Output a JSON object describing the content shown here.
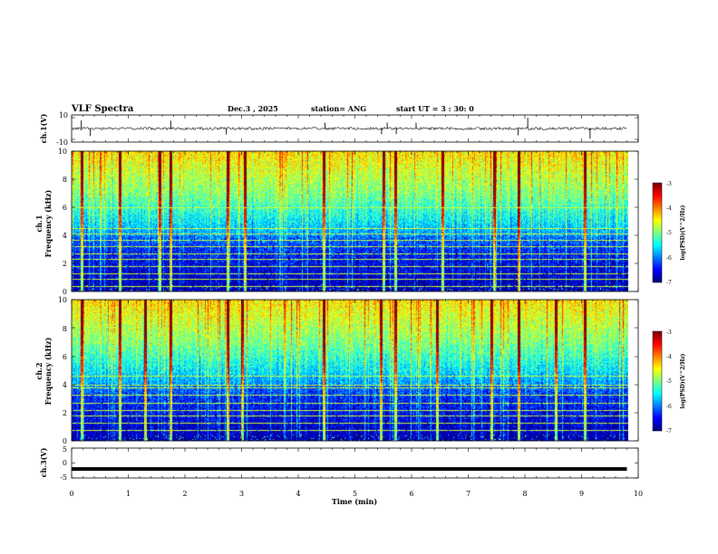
{
  "header": {
    "title": "VLF Spectra",
    "date": "Dec.3 , 2025",
    "station": "station= ANG",
    "start": "start UT = 3 : 30: 0"
  },
  "chart_data": [
    {
      "id": "ch1-waveform",
      "type": "line",
      "ylabel": "ch.1(V)",
      "ylim": [
        -10,
        10
      ],
      "yticks": [
        "10",
        "-10"
      ],
      "baseline": 0,
      "xlim": [
        0,
        10
      ],
      "data_end_min": 9.8,
      "spike_times_min": [
        0.17,
        0.33,
        1.75,
        2.73,
        4.47,
        5.47,
        5.57,
        5.73,
        6.08,
        7.88,
        8.05,
        9.15
      ]
    },
    {
      "id": "ch1-spectrogram",
      "type": "heatmap",
      "ylabel_top": "ch.1",
      "ylabel": "Frequency (kHz)",
      "ylim": [
        0,
        10
      ],
      "yticks": [
        "0",
        "2",
        "4",
        "6",
        "8",
        "10"
      ],
      "xlim": [
        0,
        10
      ],
      "data_end_min": 9.8,
      "line_freqs_khz": [
        0.4,
        0.9,
        1.3,
        1.8,
        2.3,
        2.7,
        3.2,
        3.7,
        4.1,
        4.5,
        6.0
      ],
      "bright_times_min": [
        0.18,
        0.85,
        1.55,
        1.75,
        2.75,
        3.05,
        4.45,
        5.5,
        5.72,
        6.55,
        7.45,
        7.88,
        9.05
      ]
    },
    {
      "id": "ch2-spectrogram",
      "type": "heatmap",
      "ylabel_top": "ch.2",
      "ylabel": "Frequency (kHz)",
      "ylim": [
        0,
        10
      ],
      "yticks": [
        "0",
        "2",
        "4",
        "6",
        "8",
        "10"
      ],
      "xlim": [
        0,
        10
      ],
      "data_end_min": 9.8,
      "line_freqs_khz": [
        0.8,
        1.3,
        1.8,
        2.2,
        2.7,
        3.3,
        3.8,
        4.0,
        4.6
      ],
      "bright_times_min": [
        0.18,
        0.85,
        1.3,
        1.75,
        2.75,
        3.0,
        4.45,
        5.45,
        5.72,
        6.45,
        7.4,
        7.88,
        8.55,
        9.05
      ]
    },
    {
      "id": "ch3-waveform",
      "type": "line",
      "ylabel": "ch.3(V)",
      "ylim": [
        -5,
        5
      ],
      "yticks": [
        "5",
        "0",
        "-5"
      ],
      "level": -2,
      "xlim": [
        0,
        10
      ],
      "data_end_min": 9.8
    }
  ],
  "colorbar": {
    "label": "log(PSD)(V^2/Hz)",
    "ticks": [
      "-3",
      "-4",
      "-5",
      "-6",
      "-7"
    ],
    "range": [
      -7,
      -3
    ]
  },
  "xaxis": {
    "label": "Time (min)",
    "ticks": [
      "0",
      "1",
      "2",
      "3",
      "4",
      "5",
      "6",
      "7",
      "8",
      "9",
      "10"
    ]
  }
}
